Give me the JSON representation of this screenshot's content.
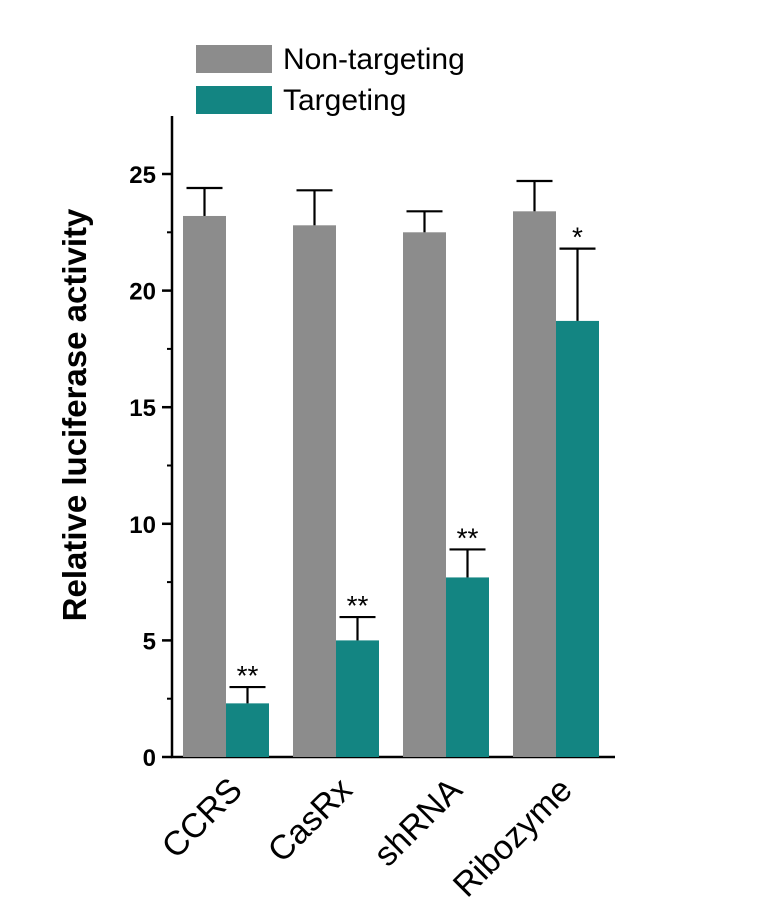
{
  "chart_data": {
    "type": "bar",
    "ylabel": "Relative luciferase activity",
    "xlabel": "",
    "ylim": [
      0,
      27.5
    ],
    "yticks": [
      0,
      5,
      10,
      15,
      20,
      25
    ],
    "categories": [
      "CCRS",
      "CasRx",
      "shRNA",
      "Ribozyme"
    ],
    "series": [
      {
        "name": "Non-targeting",
        "color": "#8c8c8c",
        "values": [
          23.2,
          22.8,
          22.5,
          23.4
        ],
        "errors": [
          1.2,
          1.5,
          0.9,
          1.3
        ],
        "annotations": [
          "",
          "",
          "",
          ""
        ]
      },
      {
        "name": "Targeting",
        "color": "#138582",
        "values": [
          2.3,
          5.0,
          7.7,
          18.7
        ],
        "errors": [
          0.7,
          1.0,
          1.2,
          3.1
        ],
        "annotations": [
          "**",
          "**",
          "**",
          "*"
        ]
      }
    ],
    "legend_position": "top",
    "grid": false
  }
}
